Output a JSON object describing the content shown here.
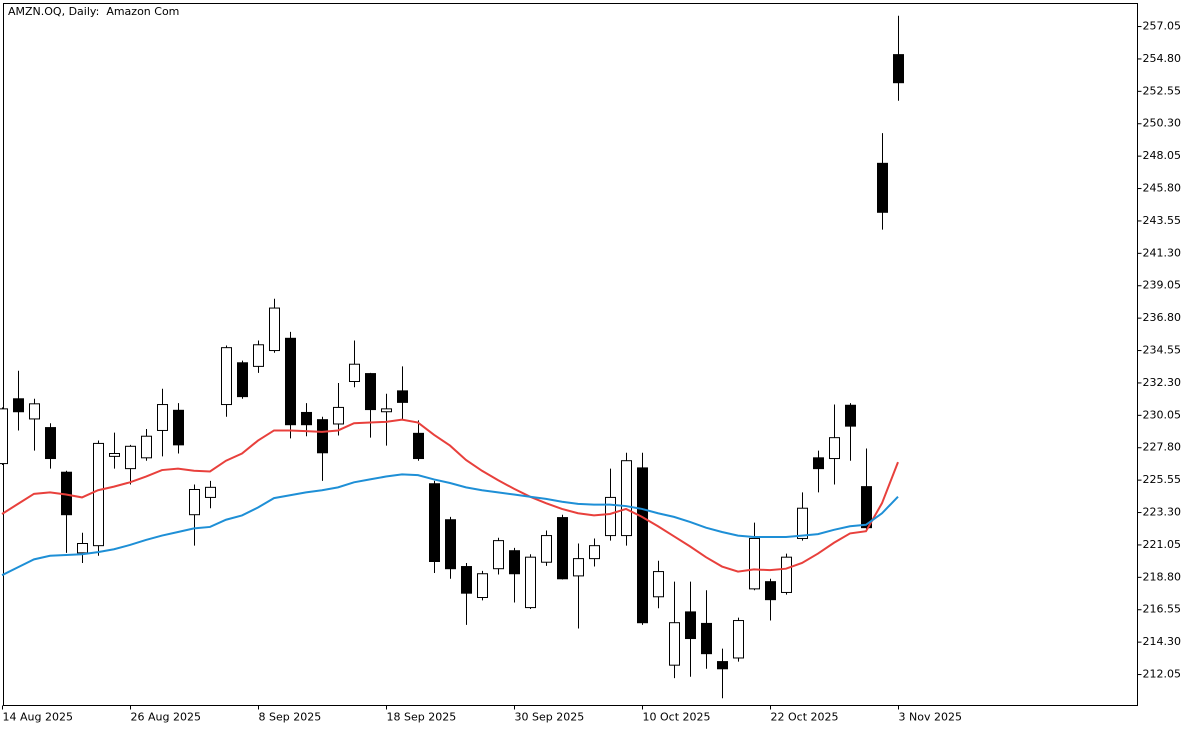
{
  "chart_data": {
    "type": "candlestick",
    "title": "AMZN.OQ, Daily:  Amazon Com",
    "categories": [
      "14 Aug 2025",
      null,
      null,
      null,
      null,
      null,
      null,
      null,
      "26 Aug 2025",
      null,
      null,
      null,
      null,
      null,
      null,
      null,
      "8 Sep 2025",
      null,
      null,
      null,
      null,
      null,
      null,
      null,
      "18 Sep 2025",
      null,
      null,
      null,
      null,
      null,
      null,
      null,
      "30 Sep 2025",
      null,
      null,
      null,
      null,
      null,
      null,
      null,
      "10 Oct 2025",
      null,
      null,
      null,
      null,
      null,
      null,
      null,
      "22 Oct 2025",
      null,
      null,
      null,
      null,
      null,
      null,
      null,
      "3 Nov 2025"
    ],
    "open": [
      226.7,
      231.2,
      229.8,
      229.2,
      226.1,
      220.5,
      221.0,
      227.2,
      226.35,
      227.1,
      229.0,
      230.4,
      223.15,
      224.35,
      230.8,
      233.7,
      233.45,
      234.55,
      235.4,
      230.25,
      229.75,
      229.45,
      232.4,
      232.95,
      230.3,
      231.75,
      228.8,
      225.3,
      222.8,
      219.55,
      217.4,
      219.4,
      220.65,
      216.7,
      219.85,
      222.95,
      218.9,
      220.1,
      221.7,
      221.7,
      226.4,
      217.45,
      212.7,
      216.4,
      215.6,
      212.95,
      213.2,
      218.0,
      218.5,
      217.75,
      221.5,
      227.1,
      227.05,
      230.75,
      225.1,
      247.55,
      255.1
    ],
    "high": [
      230.6,
      233.15,
      231.2,
      229.5,
      226.2,
      221.9,
      228.3,
      228.85,
      228.0,
      229.1,
      231.9,
      230.9,
      225.25,
      225.5,
      234.9,
      233.85,
      235.25,
      238.15,
      235.85,
      230.9,
      229.95,
      232.3,
      235.25,
      233.0,
      231.55,
      233.45,
      229.7,
      225.5,
      223.0,
      219.8,
      219.25,
      221.55,
      220.85,
      220.4,
      222.05,
      223.15,
      221.15,
      221.5,
      226.35,
      227.45,
      227.45,
      219.95,
      218.5,
      218.5,
      217.9,
      213.85,
      216.0,
      222.6,
      218.7,
      220.45,
      224.7,
      227.6,
      230.8,
      230.9,
      227.75,
      249.65,
      257.8
    ],
    "low": [
      226.6,
      229.0,
      227.6,
      226.35,
      220.5,
      219.8,
      220.3,
      226.35,
      225.25,
      226.9,
      227.2,
      227.4,
      221.0,
      223.6,
      229.95,
      231.2,
      233.0,
      234.4,
      228.45,
      228.6,
      225.5,
      228.65,
      232.0,
      228.5,
      227.95,
      229.8,
      226.9,
      219.1,
      218.7,
      215.5,
      217.2,
      219.0,
      217.05,
      216.6,
      219.6,
      218.65,
      215.25,
      219.55,
      221.35,
      221.0,
      215.5,
      216.65,
      211.8,
      211.9,
      212.45,
      210.4,
      212.95,
      217.9,
      215.8,
      217.6,
      221.35,
      224.7,
      225.25,
      226.9,
      222.05,
      242.95,
      251.9
    ],
    "close": [
      230.5,
      230.3,
      230.85,
      227.05,
      223.15,
      221.15,
      228.1,
      227.4,
      227.9,
      228.6,
      230.8,
      228.0,
      224.9,
      225.05,
      234.75,
      231.35,
      234.95,
      237.5,
      229.4,
      229.4,
      227.45,
      230.6,
      233.6,
      230.45,
      230.5,
      230.95,
      227.05,
      219.9,
      219.4,
      217.7,
      219.05,
      221.35,
      219.05,
      220.2,
      221.7,
      218.7,
      220.1,
      221.0,
      224.35,
      226.9,
      215.65,
      219.2,
      215.65,
      214.55,
      213.5,
      212.45,
      215.8,
      221.5,
      217.25,
      220.2,
      223.6,
      226.35,
      228.5,
      229.3,
      222.25,
      244.15,
      253.15
    ],
    "up_color": "#ffffff",
    "down_color": "#000000",
    "moving_averages": [
      {
        "color": "#e8403c",
        "values": [
          223.2,
          223.9,
          224.6,
          224.7,
          224.55,
          224.35,
          224.85,
          225.1,
          225.4,
          225.8,
          226.25,
          226.35,
          226.2,
          226.15,
          226.9,
          227.4,
          228.3,
          229.0,
          229.0,
          228.95,
          228.9,
          229.0,
          229.5,
          229.55,
          229.6,
          229.75,
          229.55,
          228.7,
          227.95,
          226.95,
          226.2,
          225.55,
          224.95,
          224.4,
          223.95,
          223.55,
          223.25,
          223.1,
          223.2,
          223.55,
          223.0,
          222.35,
          221.65,
          220.95,
          220.2,
          219.55,
          219.2,
          219.35,
          219.3,
          219.4,
          219.8,
          220.45,
          221.2,
          221.85,
          222.0,
          223.95,
          226.8
        ]
      },
      {
        "color": "#1e8fd6",
        "values": [
          218.95,
          219.5,
          220.05,
          220.3,
          220.35,
          220.4,
          220.55,
          220.75,
          221.05,
          221.4,
          221.7,
          221.95,
          222.2,
          222.3,
          222.8,
          223.1,
          223.65,
          224.3,
          224.5,
          224.7,
          224.85,
          225.05,
          225.4,
          225.6,
          225.8,
          225.95,
          225.9,
          225.6,
          225.35,
          225.05,
          224.85,
          224.7,
          224.55,
          224.4,
          224.25,
          224.05,
          223.9,
          223.85,
          223.85,
          223.75,
          223.55,
          223.25,
          223.0,
          222.65,
          222.25,
          221.95,
          221.7,
          221.6,
          221.6,
          221.6,
          221.7,
          221.8,
          222.1,
          222.35,
          222.45,
          223.25,
          224.4
        ]
      }
    ],
    "ylim": [
      209.9,
      258.65
    ],
    "yticks": [
      212.05,
      {
        "value": 214.3,
        "label": "214.30"
      },
      216.55,
      {
        "value": 218.8,
        "label": "218.80"
      },
      221.05,
      {
        "value": 223.3,
        "label": "223.30"
      },
      225.55,
      {
        "value": 227.8,
        "label": "227.80"
      },
      230.05,
      {
        "value": 232.3,
        "label": "232.30"
      },
      234.55,
      {
        "value": 236.8,
        "label": "236.80"
      },
      239.05,
      {
        "value": 241.3,
        "label": "241.30"
      },
      243.55,
      {
        "value": 245.8,
        "label": "245.80"
      },
      248.05,
      {
        "value": 250.3,
        "label": "250.30"
      },
      252.55,
      {
        "value": 254.8,
        "label": "254.80"
      },
      257.05
    ],
    "grid": false
  }
}
